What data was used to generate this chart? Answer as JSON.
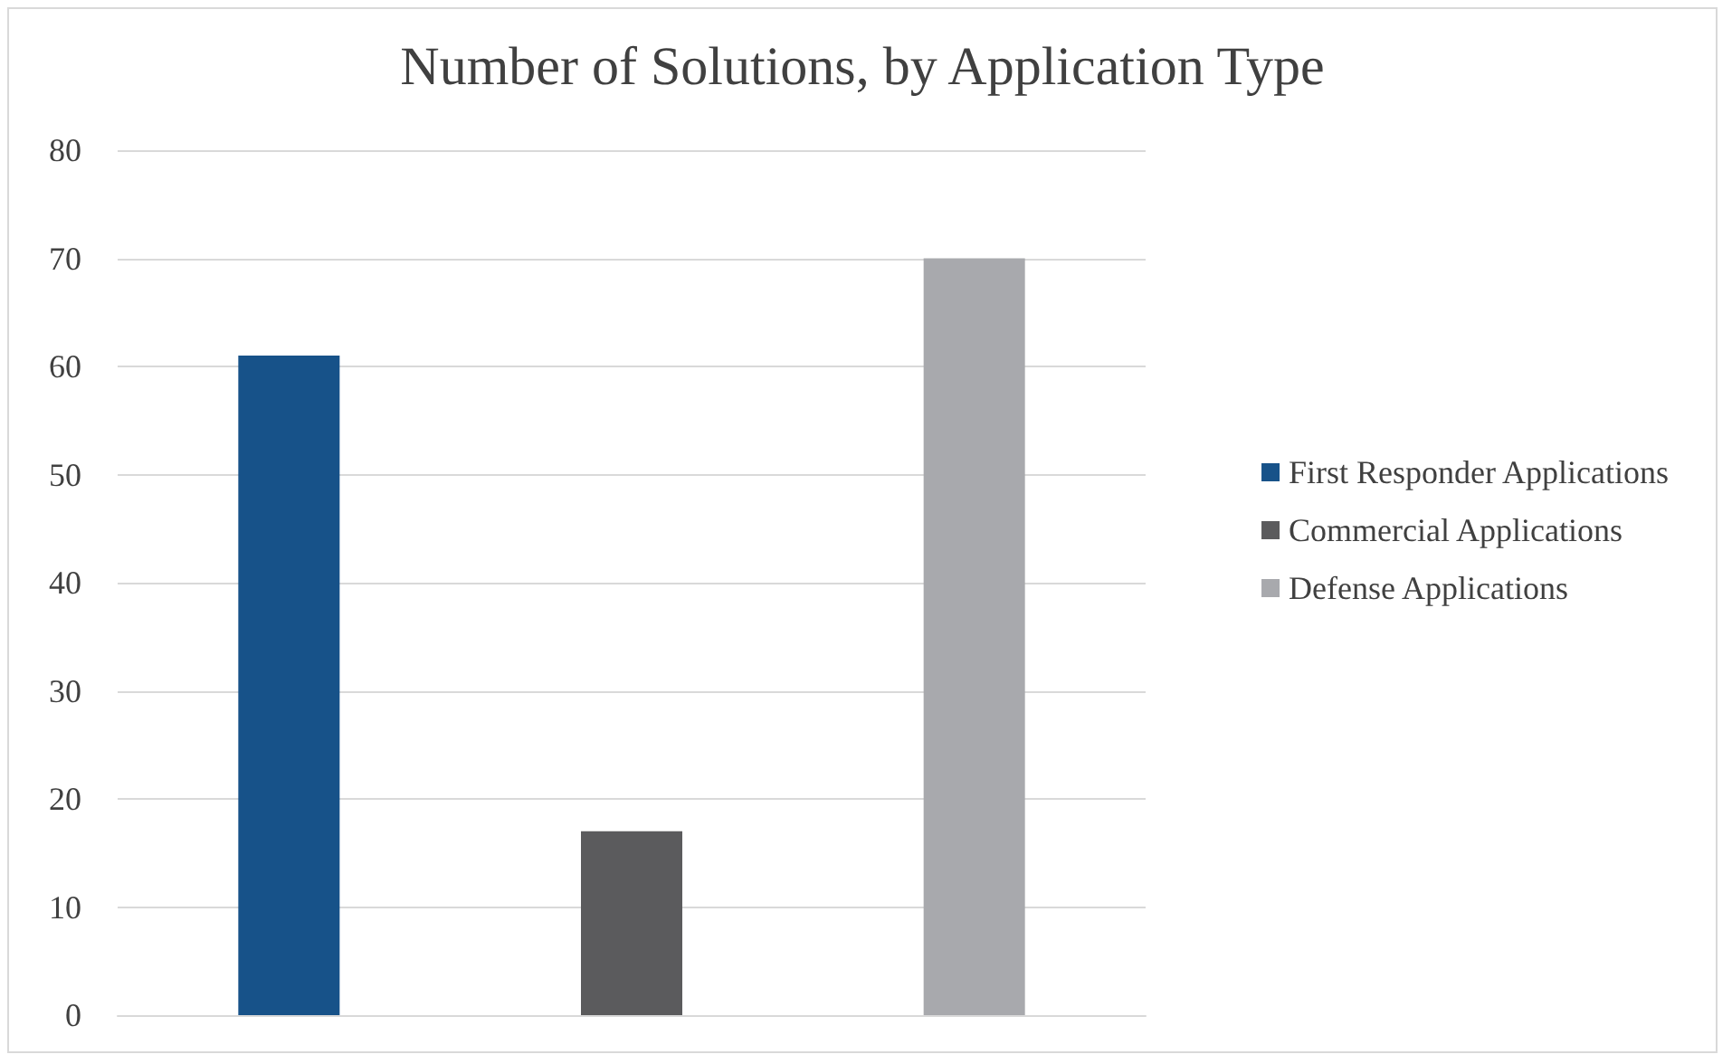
{
  "chart_data": {
    "type": "bar",
    "title": "Number of Solutions, by Application Type",
    "categories": [
      null,
      null,
      null
    ],
    "series": [
      {
        "name": "First Responder Applications",
        "color": "#175289",
        "values": [
          61,
          null,
          null
        ]
      },
      {
        "name": "Commercial Applications",
        "color": "#5b5b5d",
        "values": [
          null,
          17,
          null
        ]
      },
      {
        "name": "Defense Applications",
        "color": "#a8a9ad",
        "values": [
          null,
          null,
          70
        ]
      }
    ],
    "ylim": [
      0,
      80
    ],
    "yticks": [
      0,
      10,
      20,
      30,
      40,
      50,
      60,
      70,
      80
    ],
    "grid": "y",
    "legend": "right"
  }
}
